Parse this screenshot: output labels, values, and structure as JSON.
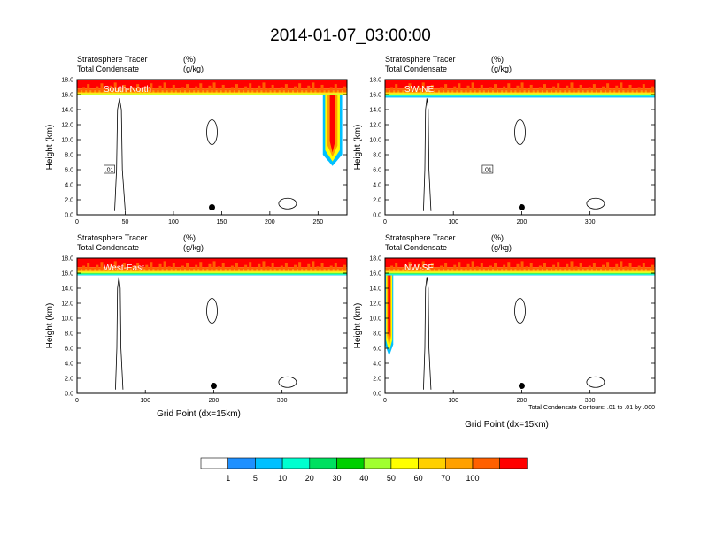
{
  "title": "2014-01-07_03:00:00",
  "chart_data": {
    "type": "heatmap",
    "panel_header": {
      "line1_left": "Stratosphere Tracer",
      "line1_unit": "(%)",
      "line2_left": "Total Condensate",
      "line2_unit": "(g/kg)"
    },
    "y_label": "Height (km)",
    "x_label": "Grid Point (dx=15km)",
    "y_ticks": [
      "0.0",
      "2.0",
      "4.0",
      "6.0",
      "8.0",
      "10.0",
      "12.0",
      "14.0",
      "16.0",
      "18.0"
    ],
    "y_range": [
      0,
      18
    ],
    "contour_note": "Total Condensate Contours: .01 to .01 by .000",
    "panels": [
      {
        "name": "South-North",
        "x_range": [
          0,
          280
        ],
        "x_ticks": [
          "0",
          "50",
          "100",
          "150",
          "200",
          "250"
        ],
        "contour_label": ".01",
        "marker_x": 140,
        "tracer_base_km": 15.9,
        "tracer_intrusion_x": [
          255,
          275
        ],
        "tracer_intrusion_min_km": 6.5
      },
      {
        "name": "SW-NE",
        "x_range": [
          0,
          395
        ],
        "x_ticks": [
          "0",
          "100",
          "200",
          "300"
        ],
        "contour_label": ".01",
        "marker_x": 200,
        "tracer_base_km": 15.6,
        "tracer_intrusion_x": [],
        "tracer_intrusion_min_km": null
      },
      {
        "name": "West-East",
        "x_range": [
          0,
          395
        ],
        "x_ticks": [
          "0",
          "100",
          "200",
          "300"
        ],
        "contour_label": "",
        "marker_x": 200,
        "tracer_base_km": 15.7,
        "tracer_intrusion_x": [],
        "tracer_intrusion_min_km": null
      },
      {
        "name": "NW-SE",
        "x_range": [
          0,
          395
        ],
        "x_ticks": [
          "0",
          "100",
          "200",
          "300"
        ],
        "contour_label": "",
        "marker_x": 200,
        "tracer_base_km": 15.7,
        "tracer_intrusion_x": [
          0,
          12
        ],
        "tracer_intrusion_min_km": 5.0
      }
    ],
    "colorbar": {
      "labels": [
        "1",
        "5",
        "10",
        "20",
        "30",
        "40",
        "50",
        "60",
        "70",
        "100"
      ],
      "colors": [
        "#ffffff",
        "#1e90ff",
        "#00c0ff",
        "#00ffd0",
        "#00e060",
        "#00d000",
        "#a0ff30",
        "#ffff00",
        "#ffd000",
        "#ffa000",
        "#ff6000",
        "#ff0000"
      ]
    }
  }
}
